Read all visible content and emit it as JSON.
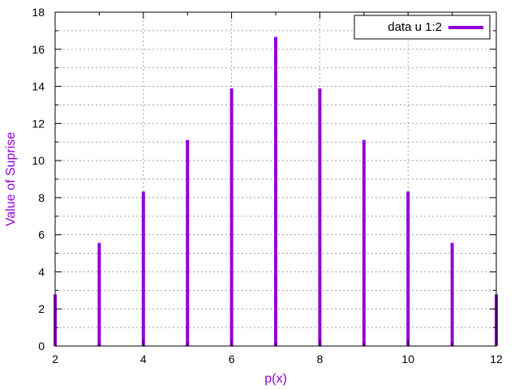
{
  "chart_data": {
    "type": "bar",
    "style": "impulses",
    "x": [
      2,
      3,
      4,
      5,
      6,
      7,
      8,
      9,
      10,
      11,
      12
    ],
    "series": [
      {
        "name": "data u 1:2",
        "color": "#9400D3",
        "values": [
          2.78,
          5.56,
          8.33,
          11.11,
          13.89,
          16.67,
          13.89,
          11.11,
          8.33,
          5.56,
          2.78
        ]
      }
    ],
    "xlabel": "p(x)",
    "ylabel": "Value of Suprise",
    "xlim": [
      2,
      12
    ],
    "ylim": [
      0,
      18
    ],
    "xticks": [
      2,
      4,
      6,
      8,
      10,
      12
    ],
    "yticks": [
      0,
      2,
      4,
      6,
      8,
      10,
      12,
      14,
      16,
      18
    ],
    "x_minor_step": 1,
    "y_minor_step": 1,
    "grid": true,
    "legend_position": "top-right",
    "label_color": "#9400D3"
  }
}
